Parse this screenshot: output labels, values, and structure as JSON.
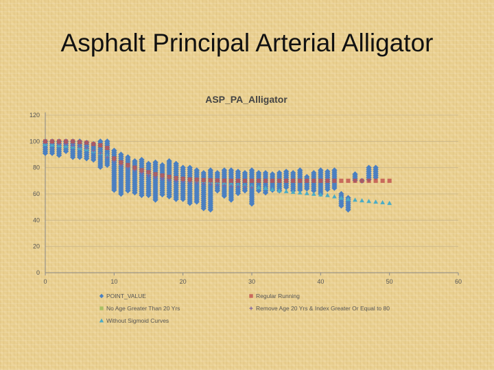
{
  "slide": {
    "title": "Asphalt Principal Arterial Alligator"
  },
  "chart_data": {
    "type": "scatter",
    "title": "ASP_PA_Alligator",
    "xlabel": "",
    "ylabel": "",
    "xlim": [
      0,
      60
    ],
    "ylim": [
      0,
      120
    ],
    "xticks": [
      0,
      10,
      20,
      30,
      40,
      50,
      60
    ],
    "yticks": [
      0,
      20,
      40,
      60,
      80,
      100,
      120
    ],
    "grid": true,
    "legend_position": "bottom",
    "point_value_ranges": [
      {
        "x": 0,
        "min": 90,
        "max": 100
      },
      {
        "x": 1,
        "min": 90,
        "max": 100
      },
      {
        "x": 2,
        "min": 89,
        "max": 100
      },
      {
        "x": 3,
        "min": 92,
        "max": 100
      },
      {
        "x": 4,
        "min": 88,
        "max": 100
      },
      {
        "x": 5,
        "min": 88,
        "max": 100
      },
      {
        "x": 6,
        "min": 86,
        "max": 99
      },
      {
        "x": 7,
        "min": 85,
        "max": 98
      },
      {
        "x": 8,
        "min": 80,
        "max": 100
      },
      {
        "x": 9,
        "min": 82,
        "max": 100
      },
      {
        "x": 10,
        "min": 62,
        "max": 93
      },
      {
        "x": 11,
        "min": 60,
        "max": 90
      },
      {
        "x": 12,
        "min": 62,
        "max": 88
      },
      {
        "x": 13,
        "min": 60,
        "max": 85
      },
      {
        "x": 14,
        "min": 58,
        "max": 86
      },
      {
        "x": 15,
        "min": 59,
        "max": 83
      },
      {
        "x": 16,
        "min": 55,
        "max": 84
      },
      {
        "x": 17,
        "min": 59,
        "max": 82
      },
      {
        "x": 18,
        "min": 57,
        "max": 85
      },
      {
        "x": 19,
        "min": 55,
        "max": 83
      },
      {
        "x": 20,
        "min": 56,
        "max": 80
      },
      {
        "x": 21,
        "min": 52,
        "max": 80
      },
      {
        "x": 22,
        "min": 54,
        "max": 78
      },
      {
        "x": 23,
        "min": 48,
        "max": 76
      },
      {
        "x": 24,
        "min": 47,
        "max": 78
      },
      {
        "x": 25,
        "min": 62,
        "max": 76
      },
      {
        "x": 26,
        "min": 58,
        "max": 78
      },
      {
        "x": 27,
        "min": 55,
        "max": 78
      },
      {
        "x": 28,
        "min": 60,
        "max": 77
      },
      {
        "x": 29,
        "min": 62,
        "max": 76
      },
      {
        "x": 30,
        "min": 52,
        "max": 78
      },
      {
        "x": 31,
        "min": 62,
        "max": 76
      },
      {
        "x": 32,
        "min": 60,
        "max": 76
      },
      {
        "x": 33,
        "min": 63,
        "max": 75
      },
      {
        "x": 34,
        "min": 62,
        "max": 76
      },
      {
        "x": 35,
        "min": 64,
        "max": 77
      },
      {
        "x": 36,
        "min": 62,
        "max": 76
      },
      {
        "x": 37,
        "min": 62,
        "max": 78
      },
      {
        "x": 38,
        "min": 64,
        "max": 73
      },
      {
        "x": 39,
        "min": 62,
        "max": 76
      },
      {
        "x": 40,
        "min": 60,
        "max": 78
      },
      {
        "x": 41,
        "min": 63,
        "max": 77
      },
      {
        "x": 42,
        "min": 64,
        "max": 78
      },
      {
        "x": 43,
        "min": 50,
        "max": 60
      },
      {
        "x": 44,
        "min": 47,
        "max": 57
      },
      {
        "x": 45,
        "min": 70,
        "max": 75
      },
      {
        "x": 46,
        "min": 70,
        "max": 70
      },
      {
        "x": 47,
        "min": 70,
        "max": 80
      },
      {
        "x": 48,
        "min": 72,
        "max": 80
      }
    ],
    "series": [
      {
        "name": "POINT_VALUE",
        "marker": "diamond",
        "color": "#4a7fc1",
        "x": [],
        "y": []
      },
      {
        "name": "Regular Running",
        "marker": "square",
        "color": "#c0504d",
        "x": [
          0,
          1,
          2,
          3,
          4,
          5,
          6,
          7,
          8,
          9,
          10,
          11,
          12,
          13,
          14,
          15,
          16,
          17,
          18,
          19,
          20,
          21,
          22,
          23,
          24,
          25,
          26,
          27,
          28,
          29,
          30,
          31,
          32,
          33,
          34,
          35,
          36,
          37,
          38,
          39,
          40,
          41,
          42,
          43,
          44,
          45,
          46,
          47,
          48,
          49,
          50
        ],
        "y": [
          100,
          100,
          100,
          100,
          100,
          99.5,
          99,
          98,
          97,
          95,
          87,
          84,
          82,
          80,
          78,
          76.5,
          75,
          74,
          73,
          72,
          71.5,
          71,
          70.8,
          70.5,
          70.3,
          70.2,
          70.1,
          70,
          70,
          70,
          70,
          70,
          70,
          70,
          70,
          70,
          70,
          70,
          70,
          70,
          70,
          70,
          70,
          70,
          70,
          70,
          70,
          70,
          70,
          70,
          70
        ]
      },
      {
        "name": "No Age Greater Than 20 Yrs",
        "marker": "square",
        "color": "#9bbb59",
        "x": [],
        "y": []
      },
      {
        "name": "Remove Age 20 Yrs & Index Greater Or Equal to 80",
        "marker": "cross",
        "color": "#8064a2",
        "x": [
          0,
          1,
          2,
          3,
          4,
          5,
          6,
          7,
          8,
          9,
          10,
          11,
          12,
          13,
          14,
          15,
          16,
          17,
          18,
          19,
          20,
          21,
          22,
          23,
          24,
          25,
          26,
          27,
          28,
          29,
          30
        ],
        "y": [
          99,
          99,
          98,
          98,
          97,
          96,
          95,
          93,
          91,
          88,
          85,
          82,
          80,
          78,
          76,
          74,
          72.5,
          71.5,
          70.5,
          70,
          69.5,
          69,
          68.5,
          68,
          67.5,
          67,
          66.5,
          66,
          65.8,
          65.5,
          65
        ]
      },
      {
        "name": "Without Sigmoid Curves",
        "marker": "triangle",
        "color": "#4bacc6",
        "x": [
          0,
          1,
          2,
          3,
          4,
          5,
          6,
          7,
          8,
          9,
          10,
          11,
          12,
          13,
          14,
          15,
          16,
          17,
          18,
          19,
          20,
          21,
          22,
          23,
          24,
          25,
          26,
          27,
          28,
          29,
          30,
          31,
          32,
          33,
          34,
          35,
          36,
          37,
          38,
          39,
          40,
          41,
          42,
          43,
          44,
          45,
          46,
          47,
          48,
          49,
          50
        ],
        "y": [
          98,
          97.5,
          97,
          96.5,
          96,
          95,
          94,
          92.5,
          91,
          89,
          86,
          83.5,
          81,
          79,
          77.5,
          76,
          75,
          74,
          73,
          72,
          71,
          70.5,
          70,
          69.5,
          69,
          68.5,
          68,
          67.5,
          67,
          66.5,
          66,
          65,
          64.5,
          63.5,
          62.5,
          62,
          61.5,
          61,
          60.5,
          60,
          59.5,
          59,
          58,
          57,
          56,
          55.5,
          55,
          54.5,
          54,
          53.5,
          53
        ]
      }
    ]
  }
}
